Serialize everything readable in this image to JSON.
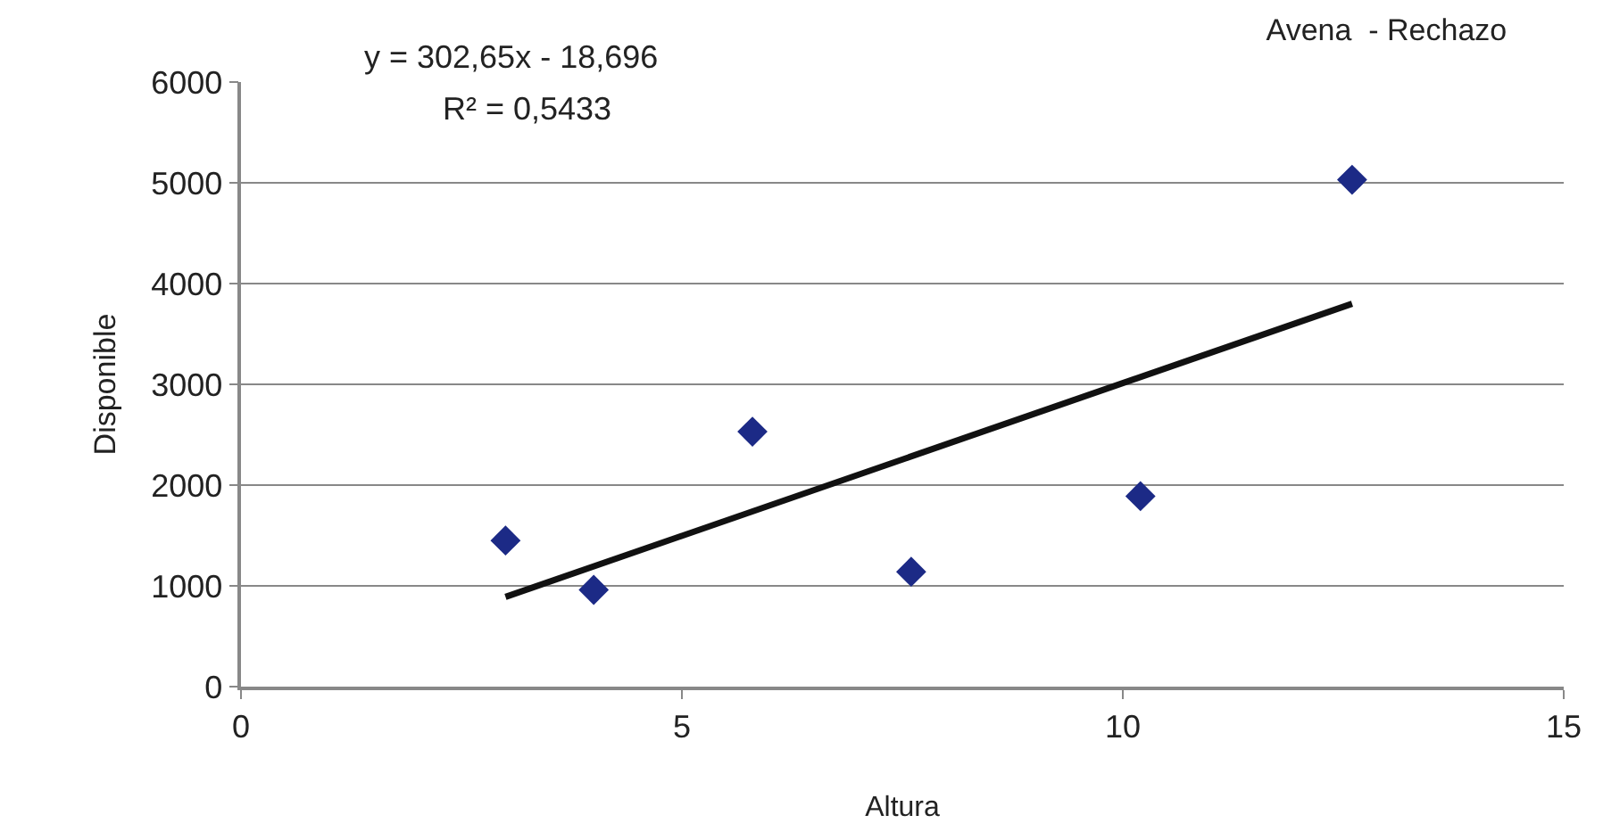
{
  "chart_data": {
    "type": "scatter",
    "title": "Avena  - Rechazo",
    "xlabel": "Altura",
    "ylabel": "Disponible",
    "x": [
      3.0,
      4.0,
      5.8,
      7.6,
      10.2,
      12.6
    ],
    "series": [
      {
        "color": "#1c2a86",
        "values": [
          1450,
          960,
          2530,
          1140,
          1890,
          5030
        ],
        "marker": "diamond"
      },
      {
        "type": "line",
        "color": "#111111",
        "x": [
          3.0,
          12.6
        ],
        "values": [
          890,
          3800
        ],
        "marker": "none",
        "line_style": "solid"
      }
    ],
    "annotations": [
      "y = 302,65x - 18,696",
      "R² = 0,5433"
    ],
    "xlim": [
      0,
      15
    ],
    "xticks": [
      0,
      5,
      10,
      15
    ],
    "ylim": [
      0,
      6000
    ],
    "yticks": [
      0,
      1000,
      2000,
      3000,
      4000,
      5000,
      6000
    ],
    "grid": "y"
  }
}
